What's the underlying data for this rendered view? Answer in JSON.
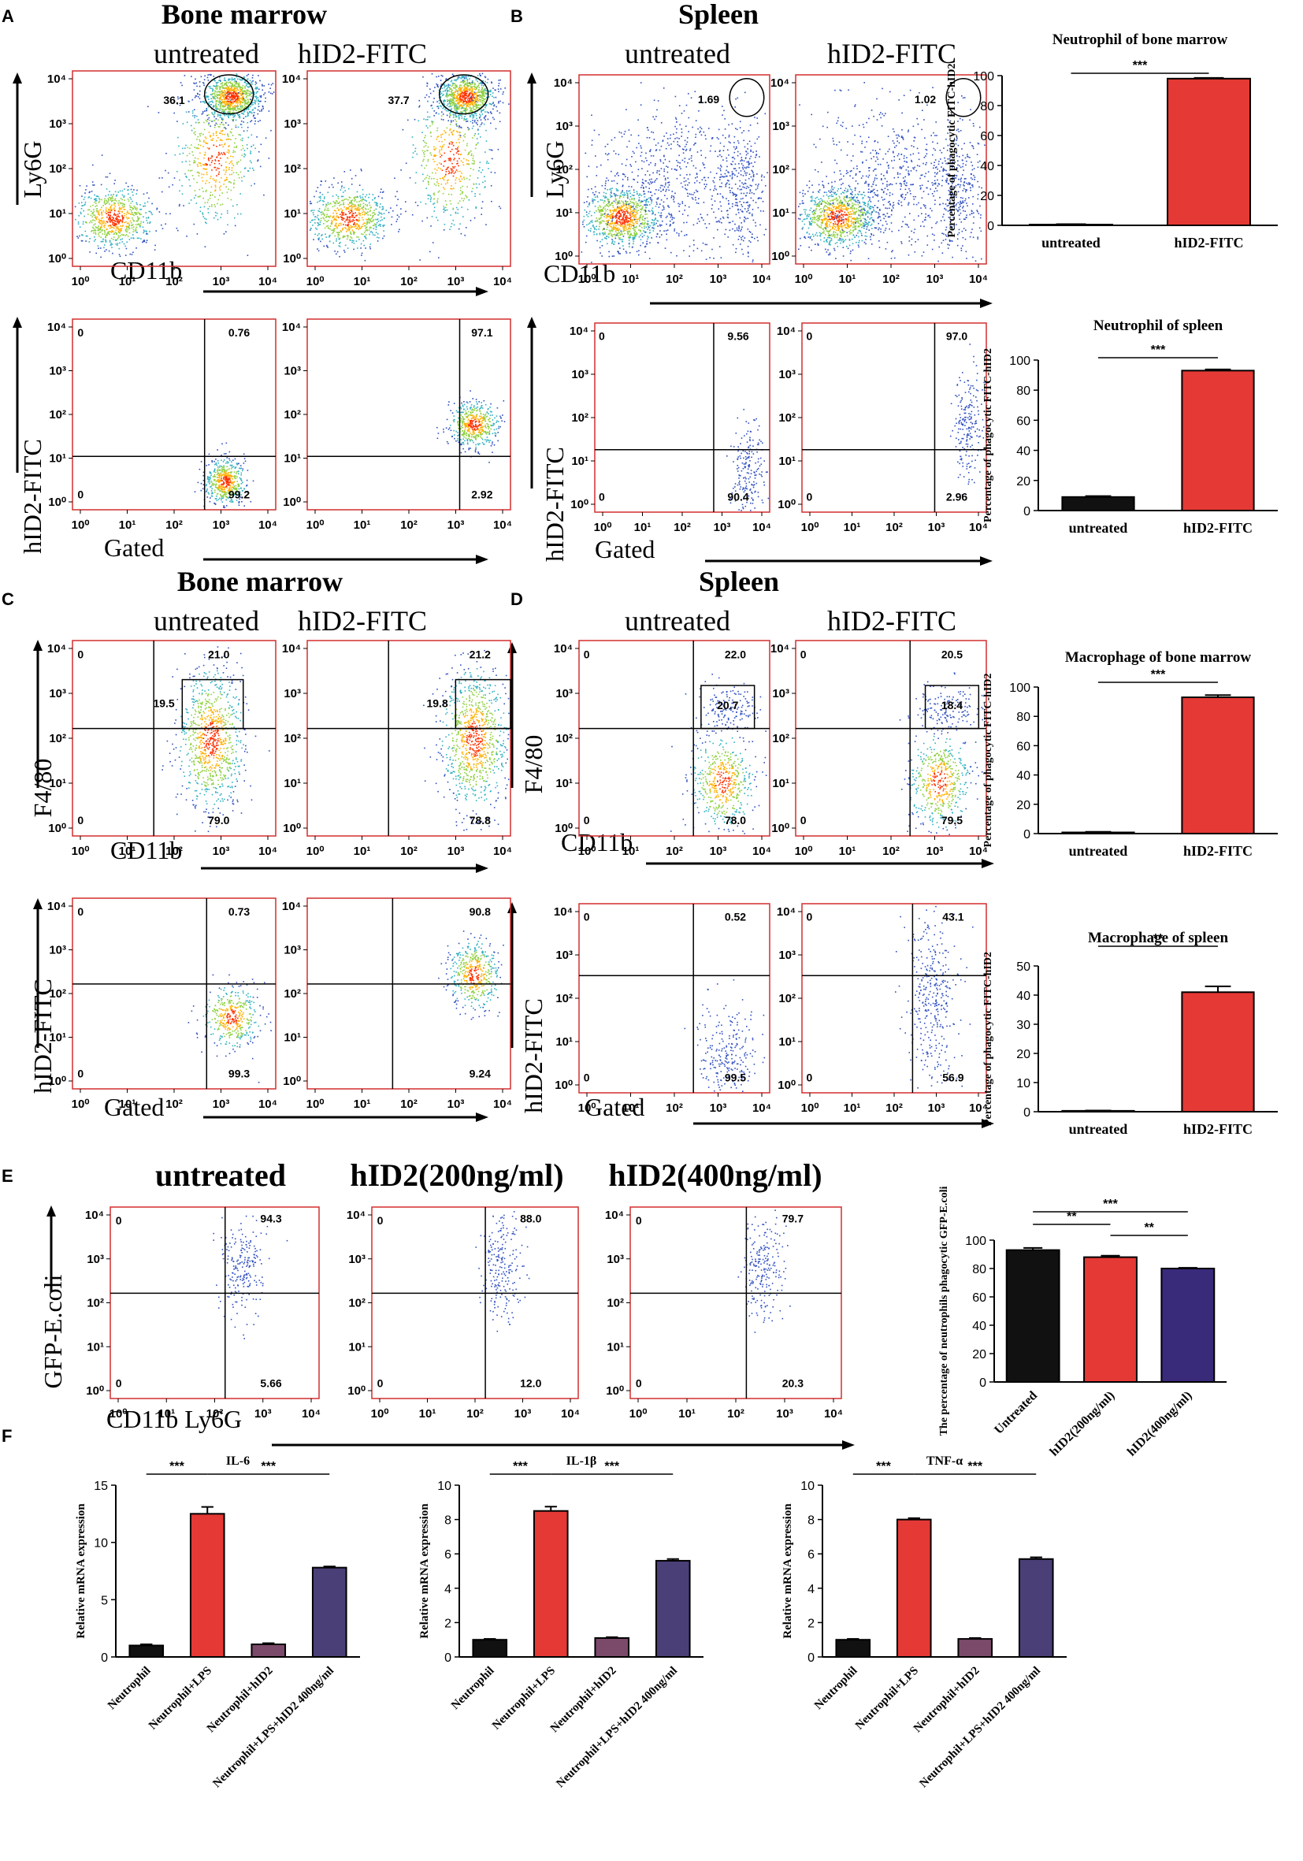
{
  "colors": {
    "gate": "#d32f2f",
    "black_bar": "#111111",
    "red_bar": "#e53935",
    "purple_bar": "#3a2a7a",
    "mauve_bar": "#7b4a6a",
    "slate_bar": "#4b3f78"
  },
  "panels": {
    "A": {
      "letter": "A",
      "title": "Bone marrow"
    },
    "B": {
      "letter": "B",
      "title": "Spleen"
    },
    "C": {
      "letter": "C",
      "title": "Bone marrow"
    },
    "D": {
      "letter": "D",
      "title": "Spleen"
    },
    "E": {
      "letter": "E"
    },
    "F": {
      "letter": "F"
    }
  },
  "flow": {
    "col_untreated": "untreated",
    "col_treated": "hID2-FITC",
    "e_col1": "untreated",
    "e_col2": "hID2(200ng/ml)",
    "e_col3": "hID2(400ng/ml)",
    "ylabel_ly6g": "Ly6G",
    "ylabel_fitc": "hID2-FITC",
    "ylabel_f480": "F4/80",
    "ylabel_gfp": "GFP-E.coli",
    "xlabel_cd11b": "CD11b",
    "xlabel_gated": "Gated",
    "xlabel_cd11b_ly6g": "CD11b Ly6G",
    "tick_labels": [
      "10⁰",
      "10¹",
      "10²",
      "10³",
      "10⁴"
    ],
    "A_top": {
      "u": "36.1",
      "t": "37.7"
    },
    "A_bot": {
      "u_ul": "0",
      "u_ur": "0.76",
      "u_ll": "0",
      "u_lr": "99.2",
      "t_ur": "97.1",
      "t_lr": "2.92"
    },
    "B_top": {
      "u": "1.69",
      "t": "1.02"
    },
    "B_bot": {
      "u_ul": "0",
      "u_ur": "9.56",
      "u_ll": "0",
      "u_lr": "90.4",
      "t_ul": "0",
      "t_ur": "97.0",
      "t_ll": "0",
      "t_lr": "2.96"
    },
    "C_top": {
      "u_ul": "0",
      "u_ur": "21.0",
      "u_box": "19.5",
      "u_ll": "0",
      "u_lr": "79.0",
      "t_ur": "21.2",
      "t_box": "19.8",
      "t_lr": "78.8"
    },
    "C_bot": {
      "u_ul": "0",
      "u_ur": "0.73",
      "u_ll": "0",
      "u_lr": "99.3",
      "t_ur": "90.8",
      "t_lr": "9.24"
    },
    "D_top": {
      "u_ul": "0",
      "u_ur": "22.0",
      "u_box": "20.7",
      "u_ll": "0",
      "u_lr": "78.0",
      "t_ul": "0",
      "t_ur": "20.5",
      "t_box": "18.4",
      "t_ll": "0",
      "t_lr": "79.5"
    },
    "D_bot": {
      "u_ul": "0",
      "u_ur": "0.52",
      "u_ll": "0",
      "u_lr": "99.5",
      "t_ul": "0",
      "t_ur": "43.1",
      "t_ll": "0",
      "t_lr": "56.9"
    },
    "E": {
      "ul": "0",
      "ll": "0",
      "c1_ur": "94.3",
      "c1_lr": "5.66",
      "c2_ur": "88.0",
      "c2_lr": "12.0",
      "c3_ur": "79.7",
      "c3_lr": "20.3"
    }
  },
  "chart_data": [
    {
      "id": "nbm",
      "type": "bar",
      "title": "Neutrophil of bone marrow",
      "ylabel": "Percentage of phagocytic FITC-hID2",
      "categories": [
        "untreated",
        "hID2-FITC"
      ],
      "values": [
        0.5,
        98
      ],
      "errors": [
        0.3,
        0.5
      ],
      "ylim": [
        0,
        100
      ],
      "yticks": [
        0,
        20,
        40,
        60,
        80,
        100
      ],
      "significance": [
        {
          "from": 0,
          "to": 1,
          "label": "***"
        }
      ]
    },
    {
      "id": "nsp",
      "type": "bar",
      "title": "Neutrophil of spleen",
      "ylabel": "Percentage of phagocytic FITC-hID2",
      "categories": [
        "untreated",
        "hID2-FITC"
      ],
      "values": [
        9,
        93
      ],
      "errors": [
        0.6,
        0.8
      ],
      "ylim": [
        0,
        100
      ],
      "yticks": [
        0,
        20,
        40,
        60,
        80,
        100
      ],
      "significance": [
        {
          "from": 0,
          "to": 1,
          "label": "***"
        }
      ]
    },
    {
      "id": "mbm",
      "type": "bar",
      "title": "Macrophage of bone marrow",
      "ylabel": "Percentage of phagocytic FITC-hID2",
      "categories": [
        "untreated",
        "hID2-FITC"
      ],
      "values": [
        0.8,
        93
      ],
      "errors": [
        0.4,
        1.5
      ],
      "ylim": [
        0,
        100
      ],
      "yticks": [
        0,
        20,
        40,
        60,
        80,
        100
      ],
      "significance": [
        {
          "from": 0,
          "to": 1,
          "label": "***"
        }
      ]
    },
    {
      "id": "msp",
      "type": "bar",
      "title": "Macrophage of spleen",
      "ylabel": "Percentage of phagocytic FITC-hID2",
      "categories": [
        "untreated",
        "hID2-FITC"
      ],
      "values": [
        0.3,
        41
      ],
      "errors": [
        0.1,
        2
      ],
      "ylim": [
        0,
        50
      ],
      "yticks": [
        0,
        10,
        20,
        30,
        40,
        50
      ],
      "significance": [
        {
          "from": 0,
          "to": 1,
          "label": "**"
        }
      ]
    },
    {
      "id": "e",
      "type": "bar",
      "title": "",
      "ylabel": "The percentage of neutrophils phagocytic GFP-E.coli",
      "categories": [
        "Untreated",
        "hID2(200ng/ml)",
        "hID2(400ng/ml)"
      ],
      "values": [
        93,
        88,
        80
      ],
      "errors": [
        1.5,
        1,
        0.5
      ],
      "ylim": [
        0,
        100
      ],
      "yticks": [
        0,
        20,
        40,
        60,
        80,
        100
      ],
      "significance": [
        {
          "from": 0,
          "to": 2,
          "label": "***"
        },
        {
          "from": 0,
          "to": 1,
          "label": "**"
        },
        {
          "from": 1,
          "to": 2,
          "label": "**"
        }
      ]
    },
    {
      "id": "il6",
      "type": "bar",
      "title": "IL-6",
      "ylabel": "Relative mRNA expression",
      "categories": [
        "Neutrophil",
        "Neutrophil+LPS",
        "Neutrophil+hID2",
        "Neutrophil+LPS+hID2 400ng/ml"
      ],
      "values": [
        1.0,
        12.5,
        1.1,
        7.8
      ],
      "errors": [
        0.1,
        0.6,
        0.1,
        0.1
      ],
      "ylim": [
        0,
        15
      ],
      "yticks": [
        0,
        5,
        10,
        15
      ],
      "significance": [
        {
          "from": 0,
          "to": 1,
          "label": "***"
        },
        {
          "from": 1,
          "to": 3,
          "label": "***"
        }
      ]
    },
    {
      "id": "il1b",
      "type": "bar",
      "title": "IL-1β",
      "ylabel": "Relative mRNA expression",
      "categories": [
        "Neutrophil",
        "Neutrophil+LPS",
        "Neutrophil+hID2",
        "Neutrophil+LPS+hID2 400ng/ml"
      ],
      "values": [
        1.0,
        8.5,
        1.1,
        5.6
      ],
      "errors": [
        0.05,
        0.25,
        0.05,
        0.1
      ],
      "ylim": [
        0,
        10
      ],
      "yticks": [
        0,
        2,
        4,
        6,
        8,
        10
      ],
      "significance": [
        {
          "from": 0,
          "to": 1,
          "label": "***"
        },
        {
          "from": 1,
          "to": 3,
          "label": "***"
        }
      ]
    },
    {
      "id": "tnf",
      "type": "bar",
      "title": "TNF-α",
      "ylabel": "Relative mRNA expression",
      "categories": [
        "Neutrophil",
        "Neutrophil+LPS",
        "Neutrophil+hID2",
        "Neutrophil+LPS+hID2 400ng/ml"
      ],
      "values": [
        1.0,
        8.0,
        1.05,
        5.7
      ],
      "errors": [
        0.05,
        0.08,
        0.05,
        0.1
      ],
      "ylim": [
        0,
        10
      ],
      "yticks": [
        0,
        2,
        4,
        6,
        8,
        10
      ],
      "significance": [
        {
          "from": 0,
          "to": 1,
          "label": "***"
        },
        {
          "from": 1,
          "to": 3,
          "label": "***"
        }
      ]
    }
  ]
}
